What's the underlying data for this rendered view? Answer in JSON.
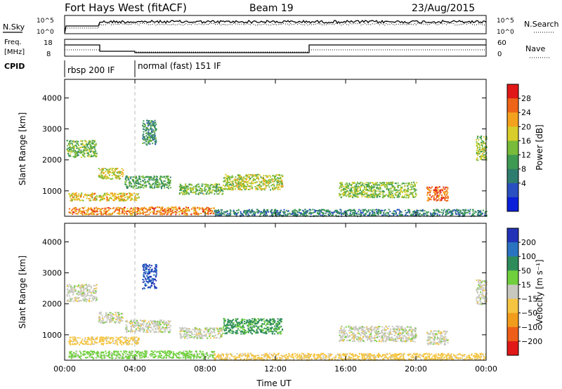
{
  "header": {
    "station": "Fort Hays West (fitACF)",
    "beam": "Beam 19",
    "date": "23/Aug/2015"
  },
  "aux_panels": {
    "nsky_label": "N.Sky",
    "nsearch_label": "N.Search",
    "noise_ticks": [
      "10^5",
      "10^0"
    ],
    "freq_label_1": "Freq.",
    "freq_label_2": "[MHz]",
    "freq_ticks": [
      "18",
      "8"
    ],
    "nave_label": "Nave",
    "nave_ticks": [
      "60",
      "0"
    ],
    "cpid_label": "CPID",
    "cpid_modes": [
      {
        "label": "rbsp 200 IF",
        "start_hour": 0,
        "end_hour": 4
      },
      {
        "label": "normal (fast) 151 IF",
        "start_hour": 4,
        "end_hour": 24
      }
    ]
  },
  "chart_data": [
    {
      "type": "heatmap",
      "name": "power",
      "ylabel": "Slant Range [km]",
      "xlabel": "",
      "xlim": [
        0,
        24
      ],
      "ylim": [
        180,
        4600
      ],
      "yticks": [
        "1000",
        "2000",
        "3000",
        "4000"
      ],
      "colorbar": {
        "label": "Power [dB]",
        "ticks": [
          "28",
          "24",
          "20",
          "16",
          "12",
          "8",
          "4"
        ],
        "colors": [
          "#0a1fd8",
          "#2a4fc0",
          "#2f7d6e",
          "#3e9a52",
          "#79bb3a",
          "#d8cd2a",
          "#f4a21d",
          "#ee6418",
          "#e01818"
        ]
      },
      "regions": [
        {
          "t0": 0.1,
          "t1": 1.8,
          "r0": 2100,
          "r1": 2650,
          "level": 14
        },
        {
          "t0": 1.9,
          "t1": 3.3,
          "r0": 1400,
          "r1": 1750,
          "level": 18
        },
        {
          "t0": 0.2,
          "t1": 4.2,
          "r0": 700,
          "r1": 950,
          "level": 20
        },
        {
          "t0": 0.2,
          "t1": 8.5,
          "r0": 250,
          "r1": 500,
          "level": 24
        },
        {
          "t0": 3.4,
          "t1": 6.0,
          "r0": 1100,
          "r1": 1500,
          "level": 12
        },
        {
          "t0": 6.5,
          "t1": 9.0,
          "r0": 900,
          "r1": 1250,
          "level": 14
        },
        {
          "t0": 9.0,
          "t1": 12.4,
          "r0": 1050,
          "r1": 1550,
          "level": 17
        },
        {
          "t0": 15.6,
          "t1": 20.0,
          "r0": 800,
          "r1": 1300,
          "level": 15
        },
        {
          "t0": 20.6,
          "t1": 21.8,
          "r0": 700,
          "r1": 1150,
          "level": 26
        },
        {
          "t0": 8.5,
          "t1": 24.0,
          "r0": 200,
          "r1": 420,
          "level": 8
        },
        {
          "t0": 4.4,
          "t1": 5.2,
          "r0": 2500,
          "r1": 3300,
          "level": 10
        },
        {
          "t0": 23.4,
          "t1": 24.0,
          "r0": 2000,
          "r1": 2800,
          "level": 16
        }
      ]
    },
    {
      "type": "heatmap",
      "name": "velocity",
      "ylabel": "Slant Range [km]",
      "xlabel": "Time UT",
      "xlim": [
        0,
        24
      ],
      "ylim": [
        180,
        4600
      ],
      "xticks": [
        "00:00",
        "04:00",
        "08:00",
        "12:00",
        "16:00",
        "20:00",
        "00:00"
      ],
      "yticks": [
        "1000",
        "2000",
        "3000",
        "4000"
      ],
      "colorbar": {
        "label": "Velocity [m s⁻¹]",
        "ticks": [
          "200",
          "100",
          "50",
          "15",
          "−15",
          "−50",
          "−100",
          "−200"
        ],
        "colors": [
          "#2233b8",
          "#2a73c0",
          "#2e8c5a",
          "#6fcf3c",
          "#c8c8c0",
          "#f5c542",
          "#f29c1c",
          "#ee5e18",
          "#e01818"
        ]
      },
      "regions": [
        {
          "t0": 0.1,
          "t1": 1.8,
          "r0": 2100,
          "r1": 2650,
          "v": 0
        },
        {
          "t0": 1.9,
          "t1": 3.3,
          "r0": 1400,
          "r1": 1750,
          "v": 0
        },
        {
          "t0": 0.2,
          "t1": 4.2,
          "r0": 700,
          "r1": 950,
          "v": -30
        },
        {
          "t0": 0.2,
          "t1": 8.5,
          "r0": 250,
          "r1": 500,
          "v": 30
        },
        {
          "t0": 3.4,
          "t1": 6.0,
          "r0": 1100,
          "r1": 1500,
          "v": 0
        },
        {
          "t0": 6.5,
          "t1": 9.0,
          "r0": 900,
          "r1": 1250,
          "v": 0
        },
        {
          "t0": 9.0,
          "t1": 12.4,
          "r0": 1050,
          "r1": 1550,
          "v": 60
        },
        {
          "t0": 15.6,
          "t1": 20.0,
          "r0": 800,
          "r1": 1300,
          "v": 0
        },
        {
          "t0": 20.6,
          "t1": 21.8,
          "r0": 700,
          "r1": 1150,
          "v": 0
        },
        {
          "t0": 8.5,
          "t1": 24.0,
          "r0": 200,
          "r1": 420,
          "v": -30
        },
        {
          "t0": 4.4,
          "t1": 5.2,
          "r0": 2500,
          "r1": 3300,
          "v": 200
        },
        {
          "t0": 23.4,
          "t1": 24.0,
          "r0": 2000,
          "r1": 2800,
          "v": 0
        }
      ]
    }
  ]
}
